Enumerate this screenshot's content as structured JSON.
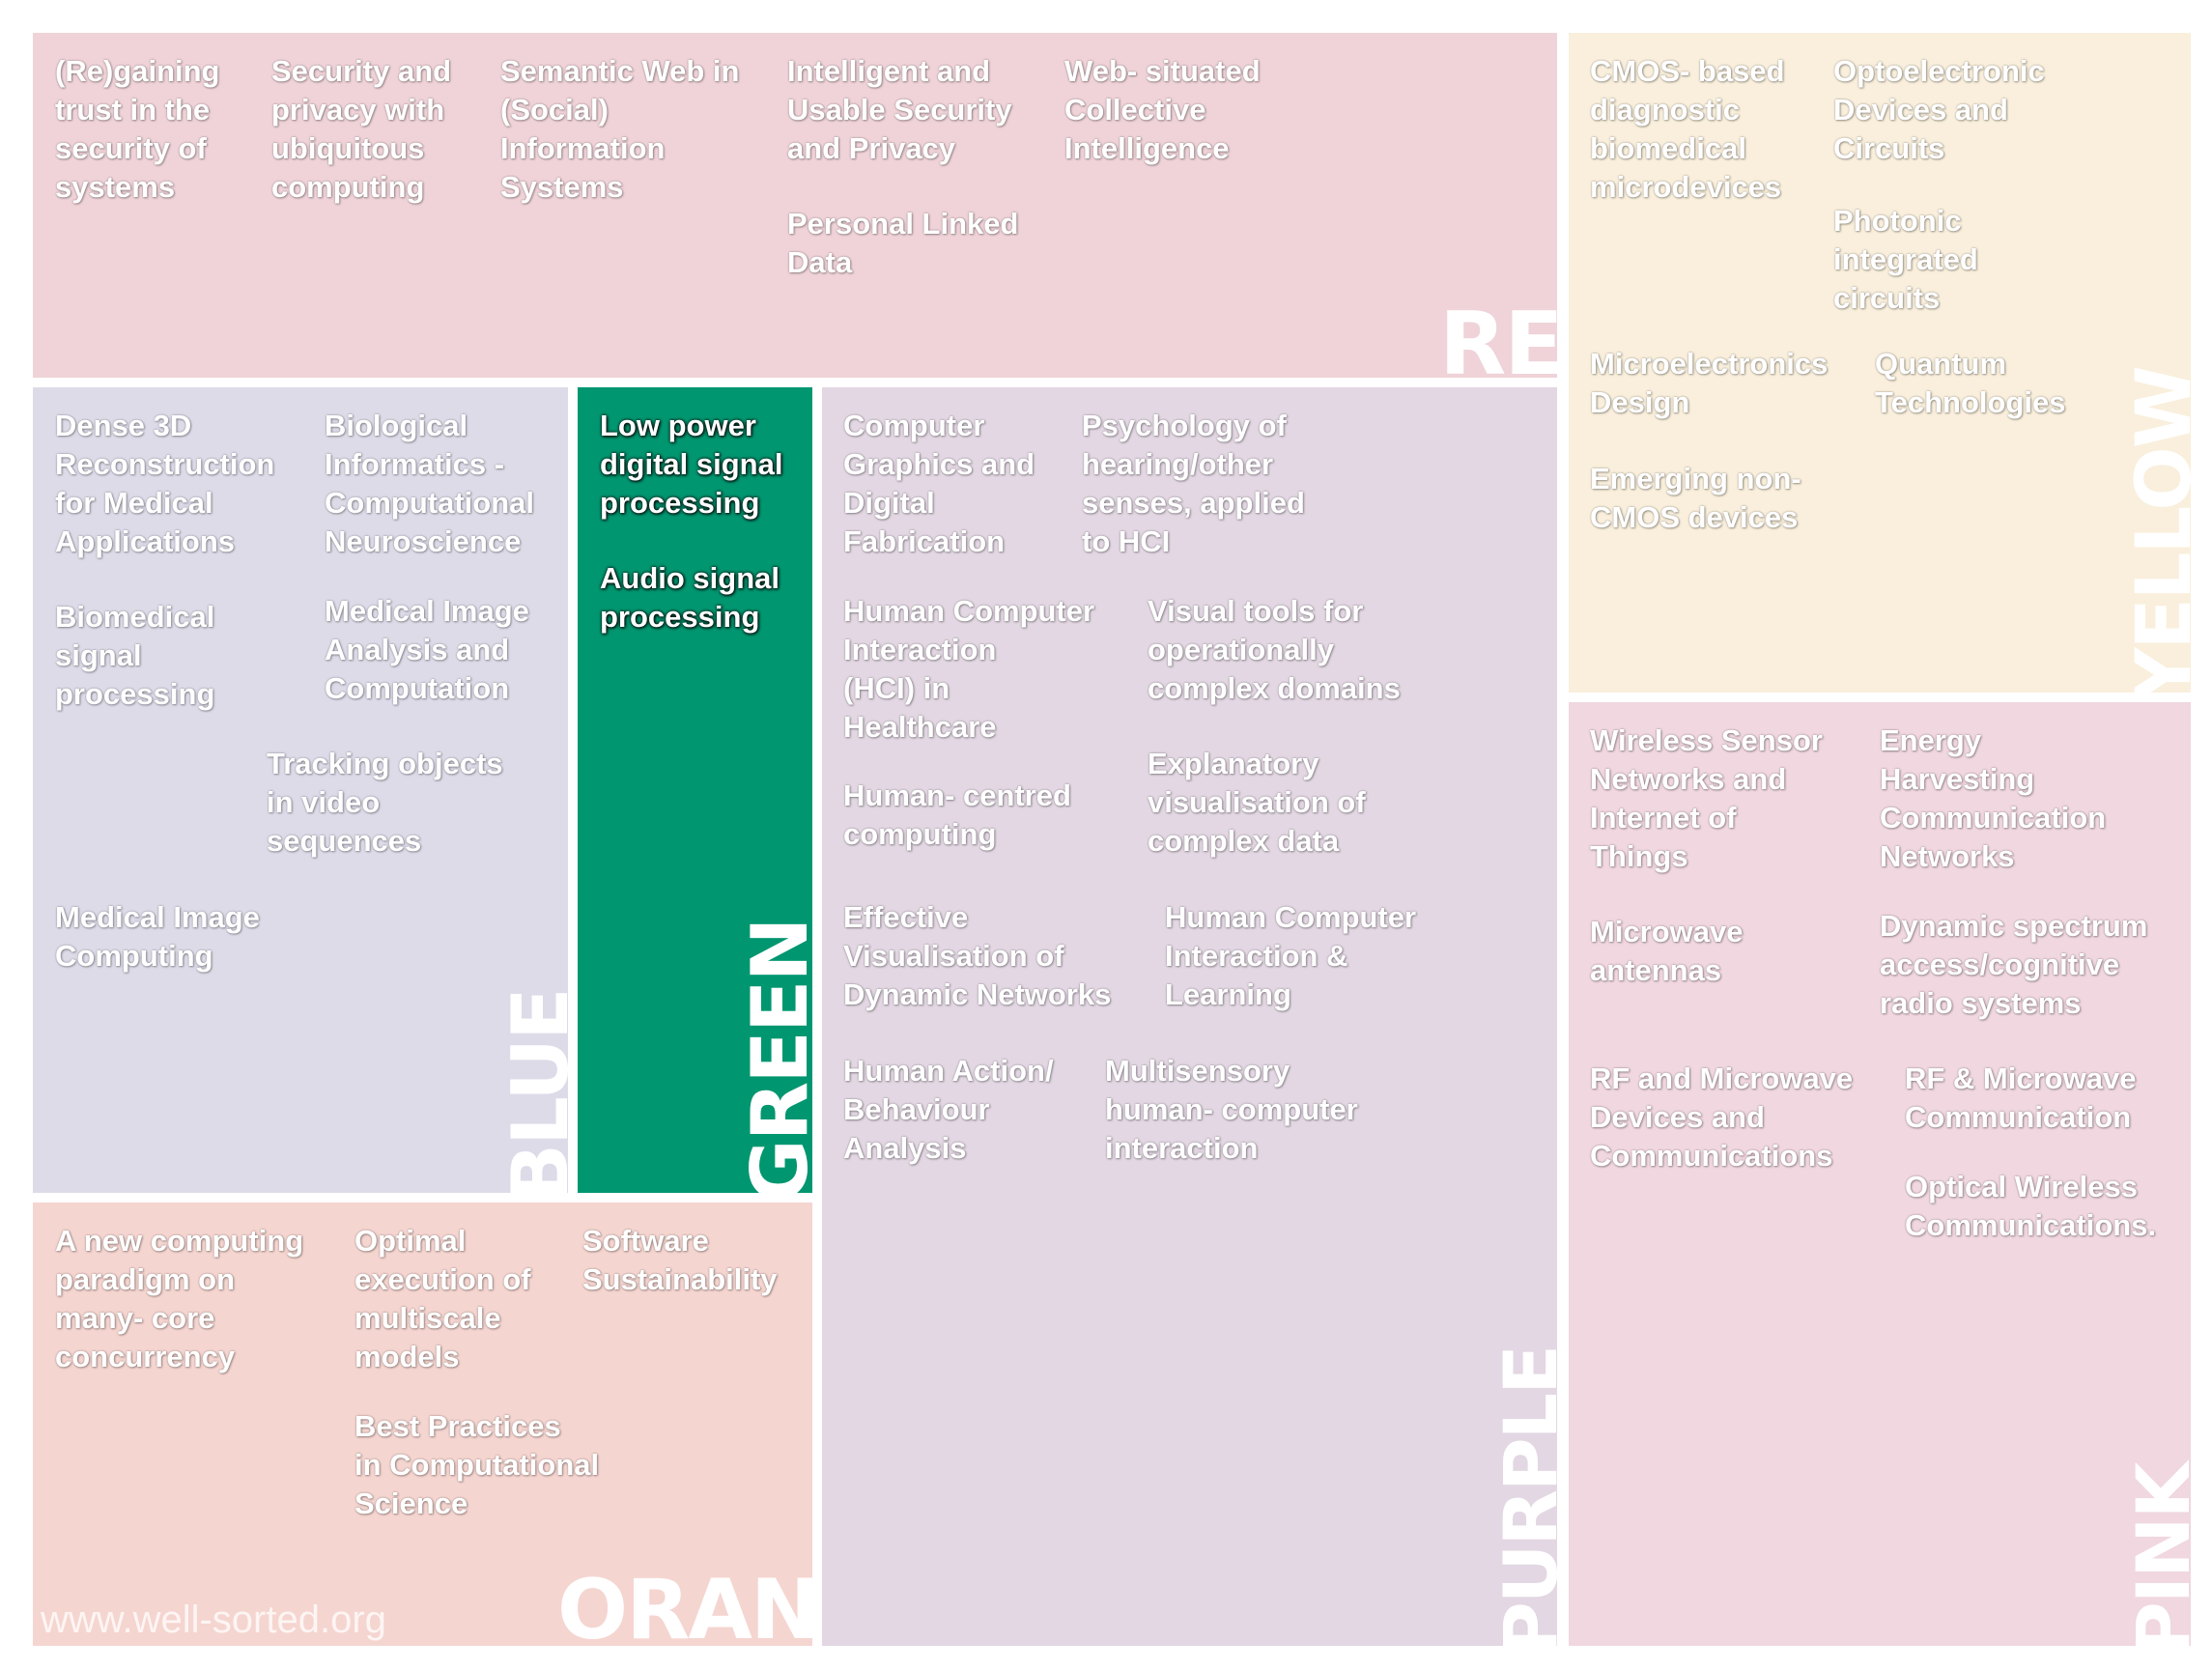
{
  "panels": {
    "red": {
      "label": "RED",
      "color": "#efd3d8",
      "items": [
        "(Re)gaining\ntrust in the\nsecurity of\nsystems",
        "Security and\nprivacy with\nubiquitous\ncomputing",
        "Semantic Web in\n(Social)\nInformation\nSystems",
        "Intelligent and\nUsable Security\nand Privacy",
        "Personal Linked\nData",
        "Web- situated\nCollective\nIntelligence"
      ]
    },
    "yellow": {
      "label": "YELLOW",
      "color": "#f9efdc",
      "items": [
        "CMOS- based\ndiagnostic\nbiomedical\nmicrodevices",
        "Optoelectronic\nDevices and\nCircuits",
        "Photonic\nintegrated\ncircuits",
        "Microelectronics\nDesign",
        "Quantum\nTechnologies",
        "Emerging non-\nCMOS devices"
      ]
    },
    "blue": {
      "label": "BLUE",
      "color": "#dddbe8",
      "items": [
        "Dense 3D\nReconstruction\nfor Medical\nApplications",
        "Biological\nInformatics -\nComputational\nNeuroscience",
        "Biomedical\nsignal\nprocessing",
        "Medical Image\nAnalysis and\nComputation",
        "Tracking objects\nin video\nsequences",
        "Medical Image\nComputing"
      ]
    },
    "green": {
      "label": "GREEN",
      "color": "#009670",
      "items": [
        "Low power\ndigital signal\nprocessing",
        "Audio signal\nprocessing"
      ]
    },
    "purple": {
      "label": "PURPLE",
      "color": "#e2d7e2",
      "items": [
        "Computer\nGraphics and\nDigital\nFabrication",
        "Psychology of\nhearing/other\nsenses, applied\nto HCI",
        "Human Computer\nInteraction\n(HCI) in\nHealthcare",
        "Visual tools for\noperationally\ncomplex domains",
        "Human- centred\ncomputing",
        "Explanatory\nvisualisation of\ncomplex data",
        "Effective\nVisualisation of\nDynamic Networks",
        "Human Computer\nInteraction &\nLearning",
        "Human Action/\nBehaviour\nAnalysis",
        "Multisensory\nhuman- computer\ninteraction"
      ]
    },
    "pink": {
      "label": "PINK",
      "color": "#f0d7e0",
      "items": [
        "Wireless Sensor\nNetworks and\nInternet of\nThings",
        "Energy\nHarvesting\nCommunication\nNetworks",
        "Microwave\nantennas",
        "Dynamic spectrum\naccess/cognitive\nradio systems",
        "RF and Microwave\nDevices and\nCommunications",
        "RF & Microwave\nCommunication",
        "Optical Wireless\nCommunications."
      ]
    },
    "orange": {
      "label": "ORANGE",
      "color": "#f5d5d0",
      "items": [
        "A new computing\nparadigm on\nmany- core\nconcurrency",
        "Optimal\nexecution of\nmultiscale\nmodels",
        "Software\nSustainability",
        "Best Practices\nin Computational\nScience"
      ]
    }
  },
  "watermark": "www.well-sorted.org"
}
